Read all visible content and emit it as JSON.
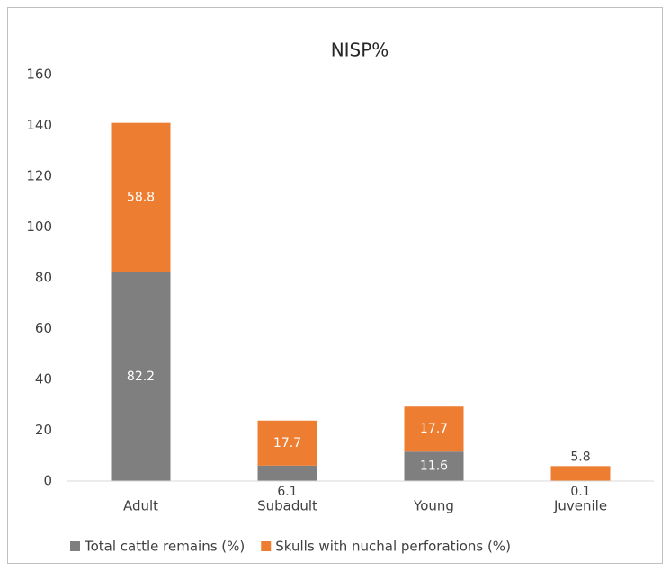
{
  "chart_data": {
    "type": "stacked_bar",
    "title": "NISP%",
    "categories": [
      "Adult",
      "Subadult",
      "Young",
      "Juvenile"
    ],
    "series": [
      {
        "name": "Total cattle remains (%)",
        "color": "#7f7f7f",
        "values": [
          82.2,
          6.1,
          11.6,
          0.1
        ]
      },
      {
        "name": "Skulls with nuchal perforations (%)",
        "color": "#ed7d31",
        "values": [
          58.8,
          17.7,
          17.7,
          5.8
        ]
      }
    ],
    "ylim": [
      0,
      160
    ],
    "yticks": [
      0,
      20,
      40,
      60,
      80,
      100,
      120,
      140,
      160
    ],
    "grid": false,
    "legend": "bottom"
  }
}
